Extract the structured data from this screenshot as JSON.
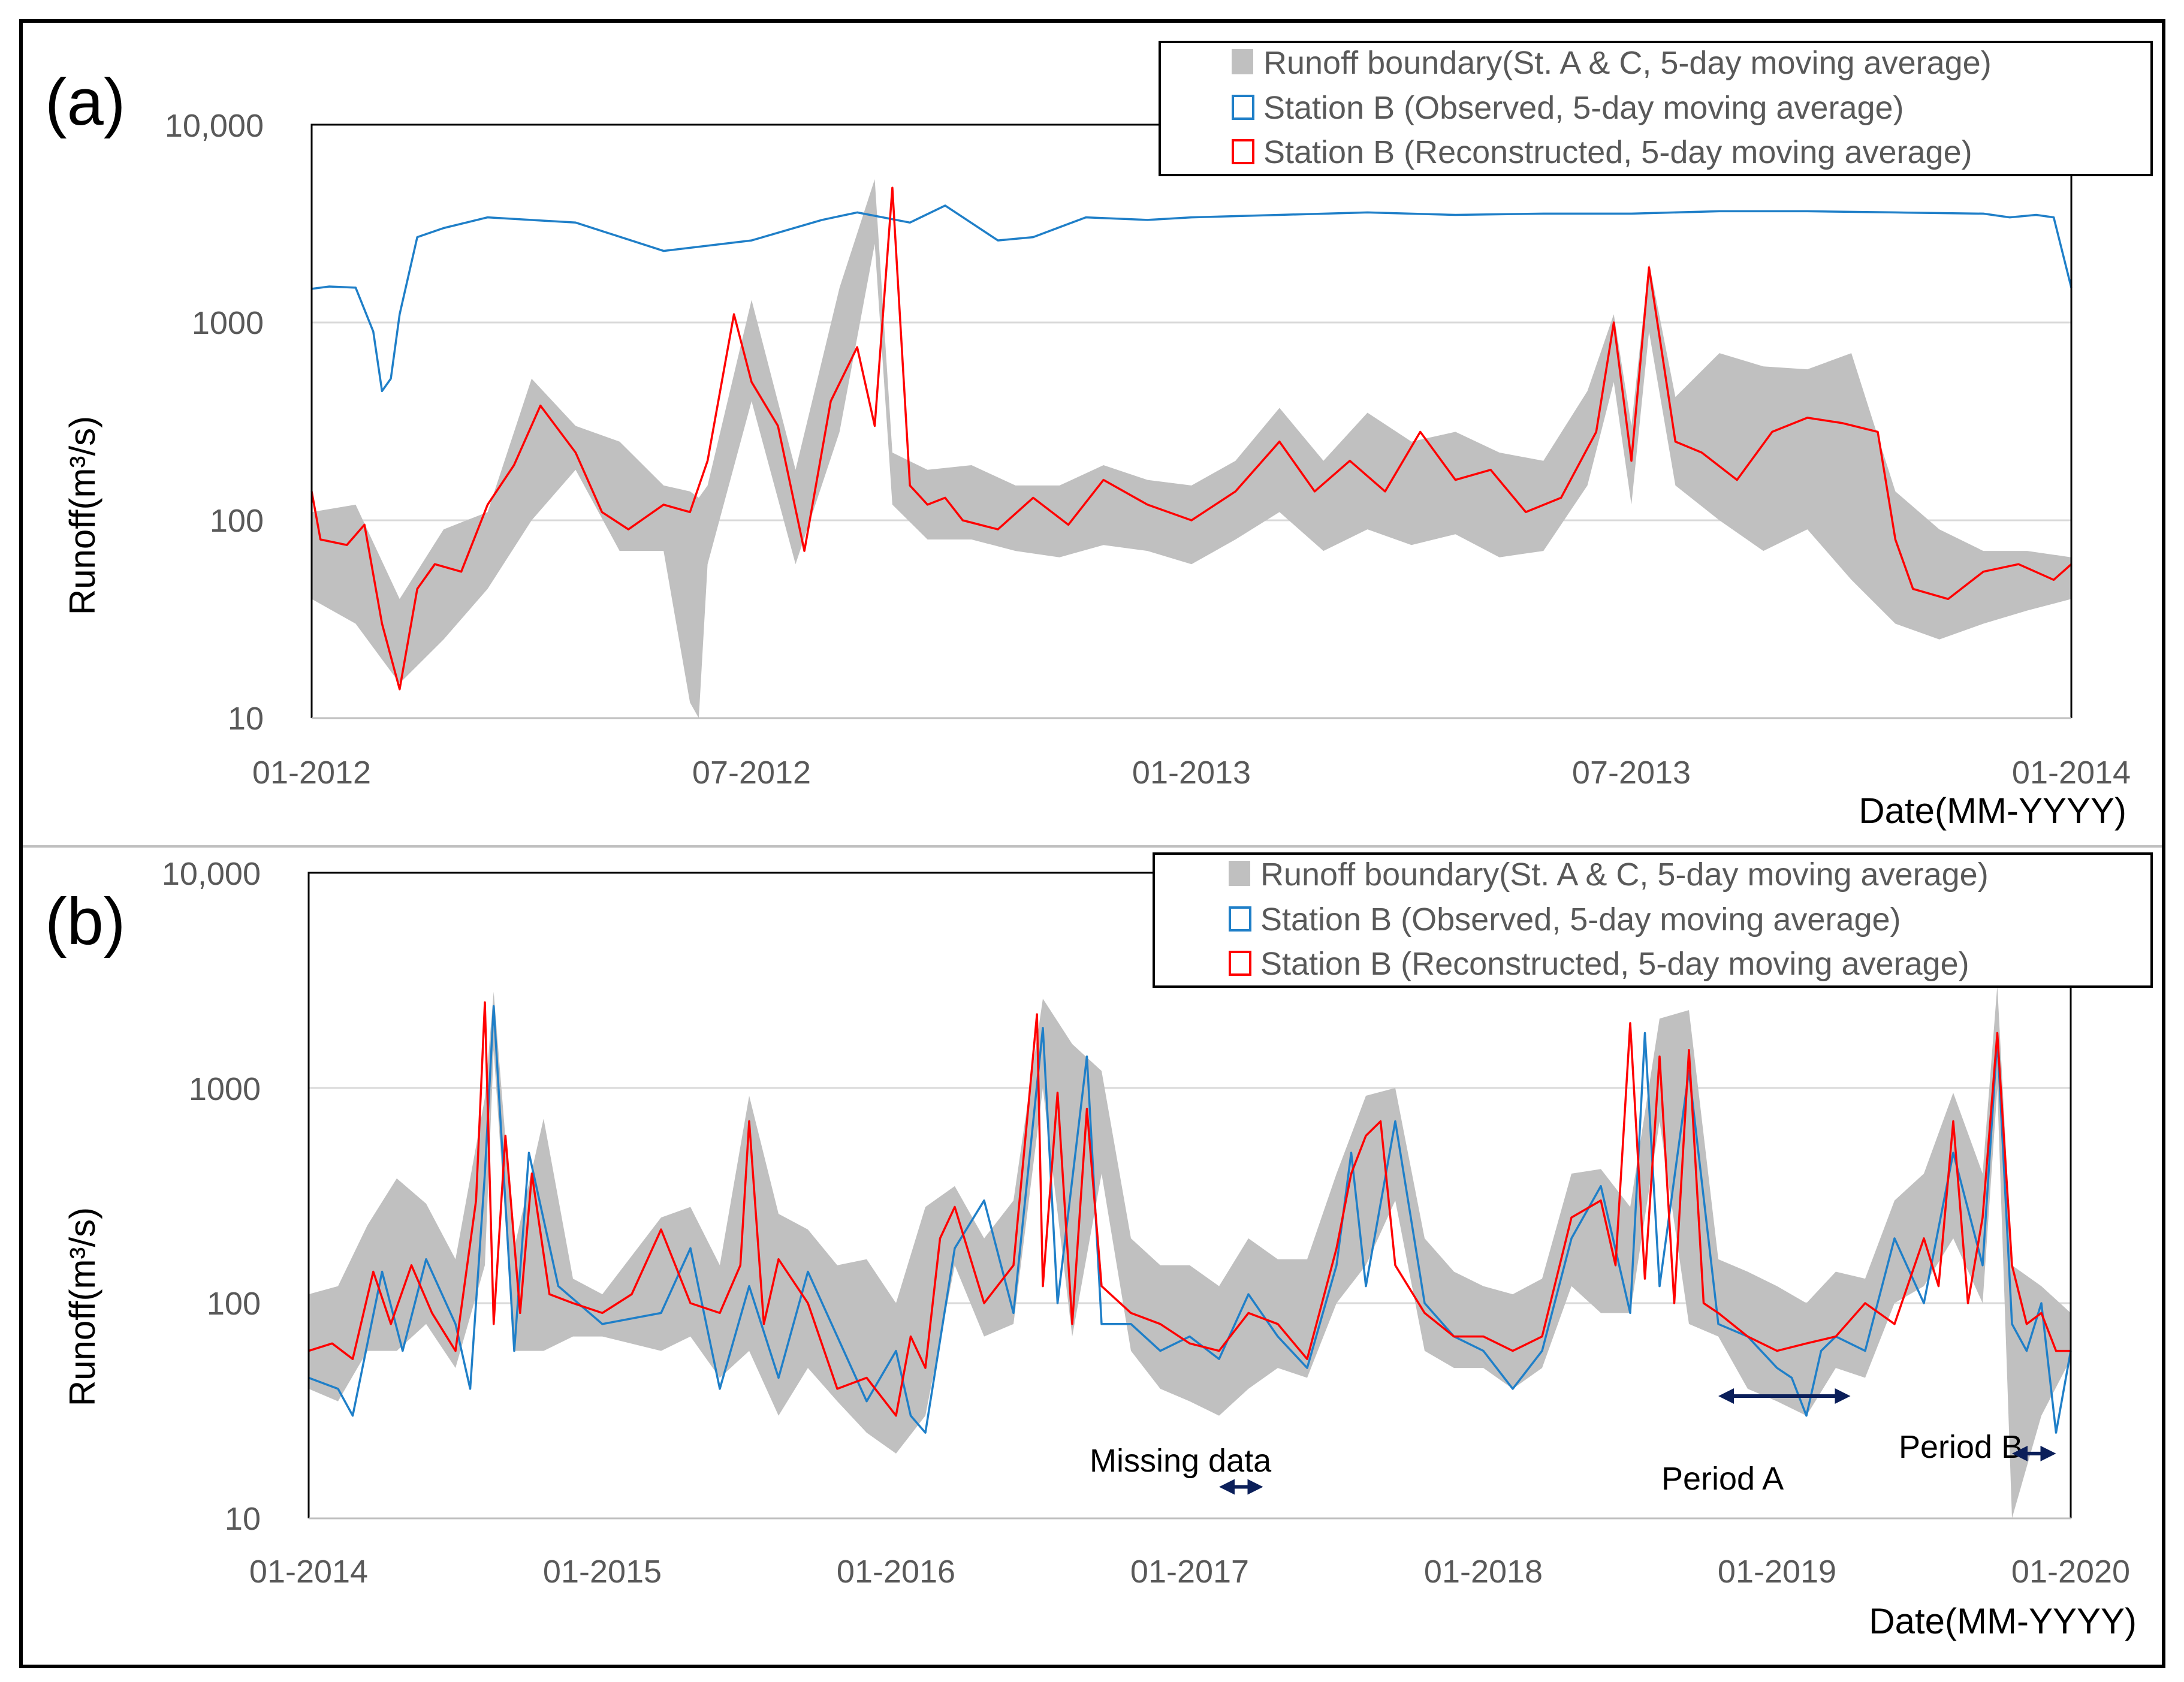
{
  "colors": {
    "boundary": "#c0c0c0",
    "observed": "#1f7fc8",
    "reconstructed": "#ff0000",
    "grid": "#d9d9d9",
    "axis": "#000000",
    "tick_text": "#595959",
    "arrow": "#0b1f5a"
  },
  "chart_data": [
    {
      "panel_label": "(a)",
      "type": "line",
      "yscale": "log",
      "ylim": [
        10,
        10000
      ],
      "yticks": [
        10,
        100,
        1000,
        10000
      ],
      "ytick_labels": [
        "10",
        "100",
        "1000",
        "10,000"
      ],
      "xlim": [
        2012.0,
        2014.0
      ],
      "xticks": [
        2012.0,
        2012.5,
        2013.0,
        2013.5,
        2014.0
      ],
      "xtick_labels": [
        "01-2012",
        "07-2012",
        "01-2013",
        "07-2013",
        "01-2014"
      ],
      "xlabel": "Date(MM-YYYY)",
      "ylabel": "Runoff(m³/s)",
      "legend": [
        "Runoff boundary(St. A & C, 5-day moving average)",
        "Station B (Observed, 5-day moving average)",
        "Station B (Reconstructed, 5-day moving average)"
      ],
      "series": [
        {
          "name": "Station B (Observed, 5-day moving average)",
          "x": [
            2012.0,
            2012.02,
            2012.05,
            2012.07,
            2012.08,
            2012.09,
            2012.1,
            2012.12,
            2012.15,
            2012.2,
            2012.3,
            2012.4,
            2012.5,
            2012.58,
            2012.62,
            2012.68,
            2012.72,
            2012.78,
            2012.82,
            2012.88,
            2012.95,
            2013.0,
            2013.1,
            2013.2,
            2013.3,
            2013.4,
            2013.5,
            2013.6,
            2013.7,
            2013.8,
            2013.9,
            2013.93,
            2013.96,
            2013.98,
            2014.0
          ],
          "y": [
            1480,
            1520,
            1500,
            900,
            450,
            520,
            1100,
            2700,
            3000,
            3400,
            3200,
            2300,
            2600,
            3300,
            3600,
            3200,
            3900,
            2600,
            2700,
            3400,
            3300,
            3400,
            3500,
            3600,
            3500,
            3550,
            3550,
            3650,
            3650,
            3600,
            3550,
            3400,
            3500,
            3400,
            1500
          ]
        },
        {
          "name": "Station B (Reconstructed, 5-day moving average)",
          "x": [
            2012.0,
            2012.01,
            2012.04,
            2012.06,
            2012.08,
            2012.1,
            2012.12,
            2012.14,
            2012.17,
            2012.2,
            2012.23,
            2012.26,
            2012.3,
            2012.33,
            2012.36,
            2012.4,
            2012.43,
            2012.45,
            2012.48,
            2012.5,
            2012.53,
            2012.56,
            2012.59,
            2012.62,
            2012.64,
            2012.66,
            2012.68,
            2012.7,
            2012.72,
            2012.74,
            2012.78,
            2012.82,
            2012.86,
            2012.9,
            2012.95,
            2013.0,
            2013.05,
            2013.1,
            2013.14,
            2013.18,
            2013.22,
            2013.26,
            2013.3,
            2013.34,
            2013.38,
            2013.42,
            2013.46,
            2013.48,
            2013.5,
            2013.52,
            2013.55,
            2013.58,
            2013.62,
            2013.66,
            2013.7,
            2013.74,
            2013.78,
            2013.8,
            2013.82,
            2013.86,
            2013.9,
            2013.94,
            2013.98,
            2014.0
          ],
          "y": [
            140,
            80,
            75,
            95,
            30,
            14,
            45,
            60,
            55,
            120,
            190,
            380,
            220,
            110,
            90,
            120,
            110,
            200,
            1100,
            500,
            300,
            70,
            400,
            750,
            300,
            4800,
            150,
            120,
            130,
            100,
            90,
            130,
            95,
            160,
            120,
            100,
            140,
            250,
            140,
            200,
            140,
            280,
            160,
            180,
            110,
            130,
            280,
            1000,
            200,
            1900,
            250,
            220,
            160,
            280,
            330,
            310,
            280,
            80,
            45,
            40,
            55,
            60,
            50,
            60
          ]
        },
        {
          "name": "Runoff boundary(St. A & C, 5-day moving average)",
          "x": [
            2012.0,
            2012.05,
            2012.1,
            2012.15,
            2012.2,
            2012.25,
            2012.3,
            2012.35,
            2012.4,
            2012.43,
            2012.44,
            2012.45,
            2012.5,
            2012.55,
            2012.6,
            2012.64,
            2012.66,
            2012.7,
            2012.75,
            2012.8,
            2012.85,
            2012.9,
            2012.95,
            2013.0,
            2013.05,
            2013.1,
            2013.15,
            2013.2,
            2013.25,
            2013.3,
            2013.35,
            2013.4,
            2013.45,
            2013.48,
            2013.5,
            2013.52,
            2013.55,
            2013.6,
            2013.65,
            2013.7,
            2013.75,
            2013.8,
            2013.85,
            2013.9,
            2013.95,
            2014.0
          ],
          "low": [
            40,
            30,
            15,
            25,
            45,
            100,
            180,
            70,
            70,
            12,
            10,
            60,
            400,
            60,
            280,
            2500,
            120,
            80,
            80,
            70,
            65,
            75,
            70,
            60,
            80,
            110,
            70,
            90,
            75,
            85,
            65,
            70,
            150,
            500,
            120,
            900,
            150,
            100,
            70,
            90,
            50,
            30,
            25,
            30,
            35,
            40
          ],
          "high": [
            110,
            120,
            40,
            90,
            110,
            520,
            300,
            250,
            150,
            140,
            130,
            150,
            1300,
            180,
            1500,
            5300,
            220,
            180,
            190,
            150,
            150,
            190,
            160,
            150,
            200,
            370,
            200,
            350,
            250,
            280,
            220,
            200,
            450,
            1100,
            300,
            2000,
            420,
            700,
            600,
            580,
            700,
            140,
            90,
            70,
            70,
            65
          ]
        }
      ]
    },
    {
      "panel_label": "(b)",
      "type": "line",
      "yscale": "log",
      "ylim": [
        10,
        10000
      ],
      "yticks": [
        10,
        100,
        1000,
        10000
      ],
      "ytick_labels": [
        "10",
        "100",
        "1000",
        "10,000"
      ],
      "xlim": [
        2014.0,
        2020.0
      ],
      "xticks": [
        2014.0,
        2015.0,
        2016.0,
        2017.0,
        2018.0,
        2019.0,
        2020.0
      ],
      "xtick_labels": [
        "01-2014",
        "01-2015",
        "01-2016",
        "01-2017",
        "01-2018",
        "01-2019",
        "01-2020"
      ],
      "xlabel": "Date(MM-YYYY)",
      "ylabel": "Runoff(m³/s)",
      "legend": [
        "Runoff boundary(St. A & C, 5-day moving average)",
        "Station B (Observed, 5-day moving average)",
        "Station B (Reconstructed, 5-day moving average)"
      ],
      "annotations": [
        {
          "text": "Missing data",
          "x_from": 2017.1,
          "x_to": 2017.25,
          "y": 15,
          "arrow_y": 14
        },
        {
          "text": "Period A",
          "x_from": 2018.8,
          "x_to": 2019.25,
          "y": 20,
          "arrow_y": 37
        },
        {
          "text": "Period B",
          "x_from": 2019.8,
          "x_to": 2019.95,
          "y": 24,
          "arrow_y": 20
        }
      ],
      "series": [
        {
          "name": "Station B (Observed, 5-day moving average)",
          "x": [
            2014.0,
            2014.1,
            2014.15,
            2014.25,
            2014.32,
            2014.4,
            2014.5,
            2014.55,
            2014.6,
            2014.63,
            2014.7,
            2014.75,
            2014.85,
            2015.0,
            2015.2,
            2015.3,
            2015.4,
            2015.5,
            2015.6,
            2015.7,
            2015.8,
            2015.9,
            2016.0,
            2016.05,
            2016.1,
            2016.2,
            2016.3,
            2016.4,
            2016.5,
            2016.55,
            2016.65,
            2016.7,
            2016.8,
            2016.9,
            2017.0,
            2017.1,
            2017.2,
            2017.3,
            2017.4,
            2017.5,
            2017.55,
            2017.6,
            2017.7,
            2017.8,
            2017.9,
            2018.0,
            2018.1,
            2018.2,
            2018.3,
            2018.4,
            2018.5,
            2018.55,
            2018.6,
            2018.7,
            2018.8,
            2018.9,
            2019.0,
            2019.05,
            2019.1,
            2019.15,
            2019.2,
            2019.3,
            2019.4,
            2019.5,
            2019.6,
            2019.7,
            2019.75,
            2019.8,
            2019.85,
            2019.9,
            2019.95,
            2020.0
          ],
          "y": [
            45,
            40,
            30,
            140,
            60,
            160,
            80,
            40,
            400,
            2400,
            60,
            500,
            120,
            80,
            90,
            180,
            40,
            120,
            45,
            140,
            70,
            35,
            60,
            30,
            25,
            180,
            300,
            90,
            1900,
            100,
            1400,
            80,
            80,
            60,
            70,
            55,
            110,
            70,
            50,
            150,
            500,
            120,
            700,
            100,
            70,
            60,
            40,
            60,
            200,
            350,
            90,
            1800,
            120,
            1200,
            80,
            70,
            50,
            45,
            30,
            60,
            70,
            60,
            200,
            100,
            500,
            150,
            1700,
            80,
            60,
            100,
            25,
            60
          ]
        },
        {
          "name": "Station B (Reconstructed, 5-day moving average)",
          "x": [
            2014.0,
            2014.08,
            2014.15,
            2014.22,
            2014.28,
            2014.35,
            2014.42,
            2014.5,
            2014.57,
            2014.6,
            2014.63,
            2014.67,
            2014.72,
            2014.76,
            2014.82,
            2014.9,
            2015.0,
            2015.1,
            2015.2,
            2015.3,
            2015.4,
            2015.47,
            2015.5,
            2015.55,
            2015.6,
            2015.7,
            2015.8,
            2015.9,
            2016.0,
            2016.05,
            2016.1,
            2016.15,
            2016.2,
            2016.3,
            2016.4,
            2016.48,
            2016.5,
            2016.55,
            2016.6,
            2016.65,
            2016.7,
            2016.8,
            2016.9,
            2017.0,
            2017.1,
            2017.2,
            2017.3,
            2017.4,
            2017.5,
            2017.55,
            2017.6,
            2017.65,
            2017.7,
            2017.8,
            2017.9,
            2018.0,
            2018.1,
            2018.2,
            2018.3,
            2018.4,
            2018.45,
            2018.5,
            2018.55,
            2018.6,
            2018.65,
            2018.7,
            2018.75,
            2018.8,
            2018.9,
            2019.0,
            2019.1,
            2019.2,
            2019.3,
            2019.4,
            2019.5,
            2019.55,
            2019.6,
            2019.65,
            2019.7,
            2019.75,
            2019.8,
            2019.85,
            2019.9,
            2019.95,
            2020.0
          ],
          "y": [
            60,
            65,
            55,
            140,
            80,
            150,
            90,
            60,
            300,
            2500,
            80,
            600,
            90,
            400,
            110,
            100,
            90,
            110,
            220,
            100,
            90,
            150,
            700,
            80,
            160,
            100,
            40,
            45,
            30,
            70,
            50,
            200,
            280,
            100,
            150,
            2200,
            120,
            950,
            80,
            800,
            120,
            90,
            80,
            65,
            60,
            90,
            80,
            55,
            180,
            400,
            600,
            700,
            150,
            90,
            70,
            70,
            60,
            70,
            250,
            300,
            150,
            2000,
            130,
            1400,
            100,
            1500,
            100,
            90,
            70,
            60,
            65,
            70,
            100,
            80,
            200,
            120,
            700,
            100,
            250,
            1800,
            150,
            80,
            90,
            60,
            60
          ]
        },
        {
          "name": "Runoff boundary(St. A & C, 5-day moving average)",
          "x": [
            2014.0,
            2014.1,
            2014.2,
            2014.3,
            2014.4,
            2014.5,
            2014.6,
            2014.63,
            2014.7,
            2014.8,
            2014.9,
            2015.0,
            2015.2,
            2015.3,
            2015.4,
            2015.5,
            2015.6,
            2015.7,
            2015.8,
            2015.9,
            2016.0,
            2016.1,
            2016.2,
            2016.3,
            2016.4,
            2016.5,
            2016.6,
            2016.7,
            2016.8,
            2016.9,
            2017.0,
            2017.1,
            2017.2,
            2017.3,
            2017.4,
            2017.5,
            2017.6,
            2017.7,
            2017.8,
            2017.9,
            2018.0,
            2018.1,
            2018.2,
            2018.3,
            2018.4,
            2018.5,
            2018.6,
            2018.7,
            2018.8,
            2018.9,
            2019.0,
            2019.1,
            2019.2,
            2019.3,
            2019.4,
            2019.5,
            2019.6,
            2019.7,
            2019.75,
            2019.8,
            2019.9,
            2020.0
          ],
          "low": [
            40,
            35,
            60,
            60,
            80,
            50,
            150,
            1500,
            60,
            60,
            70,
            70,
            60,
            70,
            45,
            60,
            30,
            50,
            35,
            25,
            20,
            30,
            150,
            70,
            80,
            1000,
            70,
            400,
            60,
            40,
            35,
            30,
            40,
            50,
            45,
            100,
            150,
            300,
            60,
            50,
            50,
            40,
            50,
            120,
            90,
            90,
            700,
            80,
            70,
            40,
            35,
            30,
            50,
            45,
            100,
            120,
            200,
            100,
            1000,
            10,
            30,
            55
          ],
          "high": [
            110,
            120,
            230,
            380,
            290,
            160,
            900,
            2800,
            180,
            720,
            130,
            110,
            250,
            280,
            150,
            920,
            260,
            220,
            150,
            160,
            100,
            280,
            350,
            200,
            300,
            2600,
            1600,
            1200,
            200,
            150,
            150,
            120,
            200,
            160,
            160,
            400,
            920,
            1000,
            200,
            140,
            120,
            110,
            130,
            400,
            420,
            280,
            2100,
            2300,
            160,
            140,
            120,
            100,
            140,
            130,
            300,
            400,
            950,
            400,
            3000,
            150,
            120,
            90
          ]
        }
      ]
    }
  ]
}
